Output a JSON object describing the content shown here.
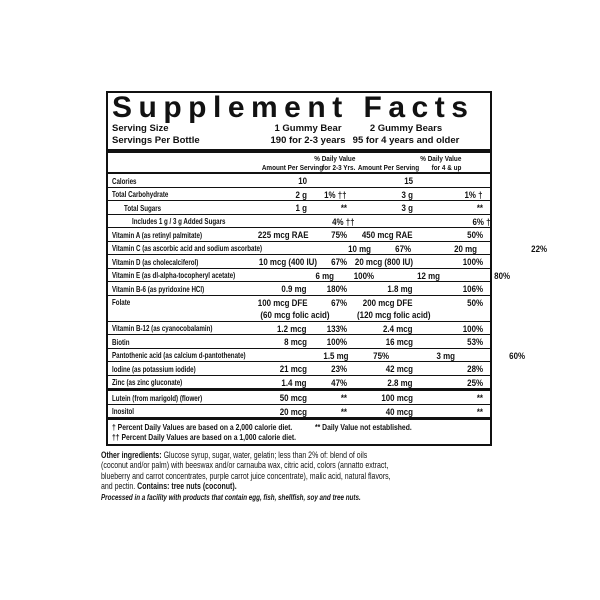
{
  "panel": {
    "title": "Supplement Facts",
    "serving": {
      "size_label": "Serving Size",
      "per_bottle_label": "Servings Per Bottle",
      "col1_line1": "1 Gummy Bear",
      "col1_line2": "190 for 2-3 years",
      "col2_line1": "2 Gummy Bears",
      "col2_line2": "95 for 4 years and older"
    },
    "columns": {
      "amount1": "Amount Per Serving",
      "dv1_line1": "% Daily Value",
      "dv1_line2": "for 2-3 Yrs.",
      "amount2": "Amount Per Serving",
      "dv2_line1": "% Daily Value",
      "dv2_line2": "for 4 & up"
    },
    "rows": [
      {
        "label": "Calories",
        "amt1": "10",
        "dv1": "",
        "amt2": "15",
        "dv2": ""
      },
      {
        "label": "Total Carbohydrate",
        "amt1": "2 g",
        "dv1": "1% ††",
        "amt2": "3 g",
        "dv2": "1% †"
      },
      {
        "label": "Total Sugars",
        "amt1": "1 g",
        "dv1": "**",
        "amt2": "3 g",
        "dv2": "**"
      },
      {
        "label": "Includes 1 g / 3 g Added Sugars",
        "amt1": "",
        "dv1": "4% ††",
        "amt2": "",
        "dv2": "6% †"
      },
      {
        "label": "Vitamin A (as retinyl palmitate)",
        "amt1": "225 mcg RAE",
        "dv1": "75%",
        "amt2": "450 mcg RAE",
        "dv2": "50%"
      },
      {
        "label": "Vitamin C (as ascorbic acid and sodium ascorbate)",
        "amt1": "10 mg",
        "dv1": "67%",
        "amt2": "20 mg",
        "dv2": "22%"
      },
      {
        "label": "Vitamin D (as cholecalciferol)",
        "amt1": "10 mcg (400 IU)",
        "dv1": "67%",
        "amt2": "20 mcg (800 IU)",
        "dv2": "100%"
      },
      {
        "label": "Vitamin E (as dl-alpha-tocopheryl acetate)",
        "amt1": "6 mg",
        "dv1": "100%",
        "amt2": "12 mg",
        "dv2": "80%"
      },
      {
        "label": "Vitamin B-6 (as pyridoxine HCl)",
        "amt1": "0.9 mg",
        "dv1": "180%",
        "amt2": "1.8 mg",
        "dv2": "106%"
      },
      {
        "label": "Folate",
        "amt1": "100 mcg DFE",
        "dv1": "67%",
        "amt2": "200 mcg DFE",
        "dv2": "50%"
      },
      {
        "label": "",
        "amt1": "(60 mcg folic acid)",
        "dv1": "",
        "amt2": "(120 mcg folic acid)",
        "dv2": ""
      },
      {
        "label": "Vitamin B-12 (as cyanocobalamin)",
        "amt1": "1.2 mcg",
        "dv1": "133%",
        "amt2": "2.4 mcg",
        "dv2": "100%"
      },
      {
        "label": "Biotin",
        "amt1": "8 mcg",
        "dv1": "100%",
        "amt2": "16 mcg",
        "dv2": "53%"
      },
      {
        "label": "Pantothenic acid (as calcium d-pantothenate)",
        "amt1": "1.5 mg",
        "dv1": "75%",
        "amt2": "3 mg",
        "dv2": "60%"
      },
      {
        "label": "Iodine (as potassium iodide)",
        "amt1": "21 mcg",
        "dv1": "23%",
        "amt2": "42 mcg",
        "dv2": "28%"
      },
      {
        "label": "Zinc (as zinc gluconate)",
        "amt1": "1.4 mg",
        "dv1": "47%",
        "amt2": "2.8 mg",
        "dv2": "25%"
      },
      {
        "label": "Lutein (from marigold) (flower)",
        "amt1": "50 mcg",
        "dv1": "**",
        "amt2": "100 mcg",
        "dv2": "**"
      },
      {
        "label": "Inositol",
        "amt1": "20 mcg",
        "dv1": "**",
        "amt2": "40 mcg",
        "dv2": "**"
      }
    ],
    "footnotes": {
      "dagger": "† Percent Daily Values are based on a 2,000 calorie diet.",
      "not_established": "** Daily Value not established.",
      "double_dagger": "†† Percent Daily Values are based on a 1,000 calorie diet."
    }
  },
  "other_ingredients": {
    "intro": "Other ingredients:",
    "body": "Glucose syrup, sugar, water, gelatin; less than 2% of: blend of oils (coconut and/or palm) with beeswax and/or carnauba wax, citric acid, colors (annatto extract, blueberry and carrot concentrates, purple carrot juice concentrate), malic acid, natural flavors, and pectin.",
    "contains": "Contains: tree nuts (coconut).",
    "allergen_note": "Processed in a facility with products that contain egg, fish, shellfish, soy and tree nuts."
  },
  "colors": {
    "background": "#ffffff",
    "text": "#111111",
    "panel_border": "#111111"
  }
}
